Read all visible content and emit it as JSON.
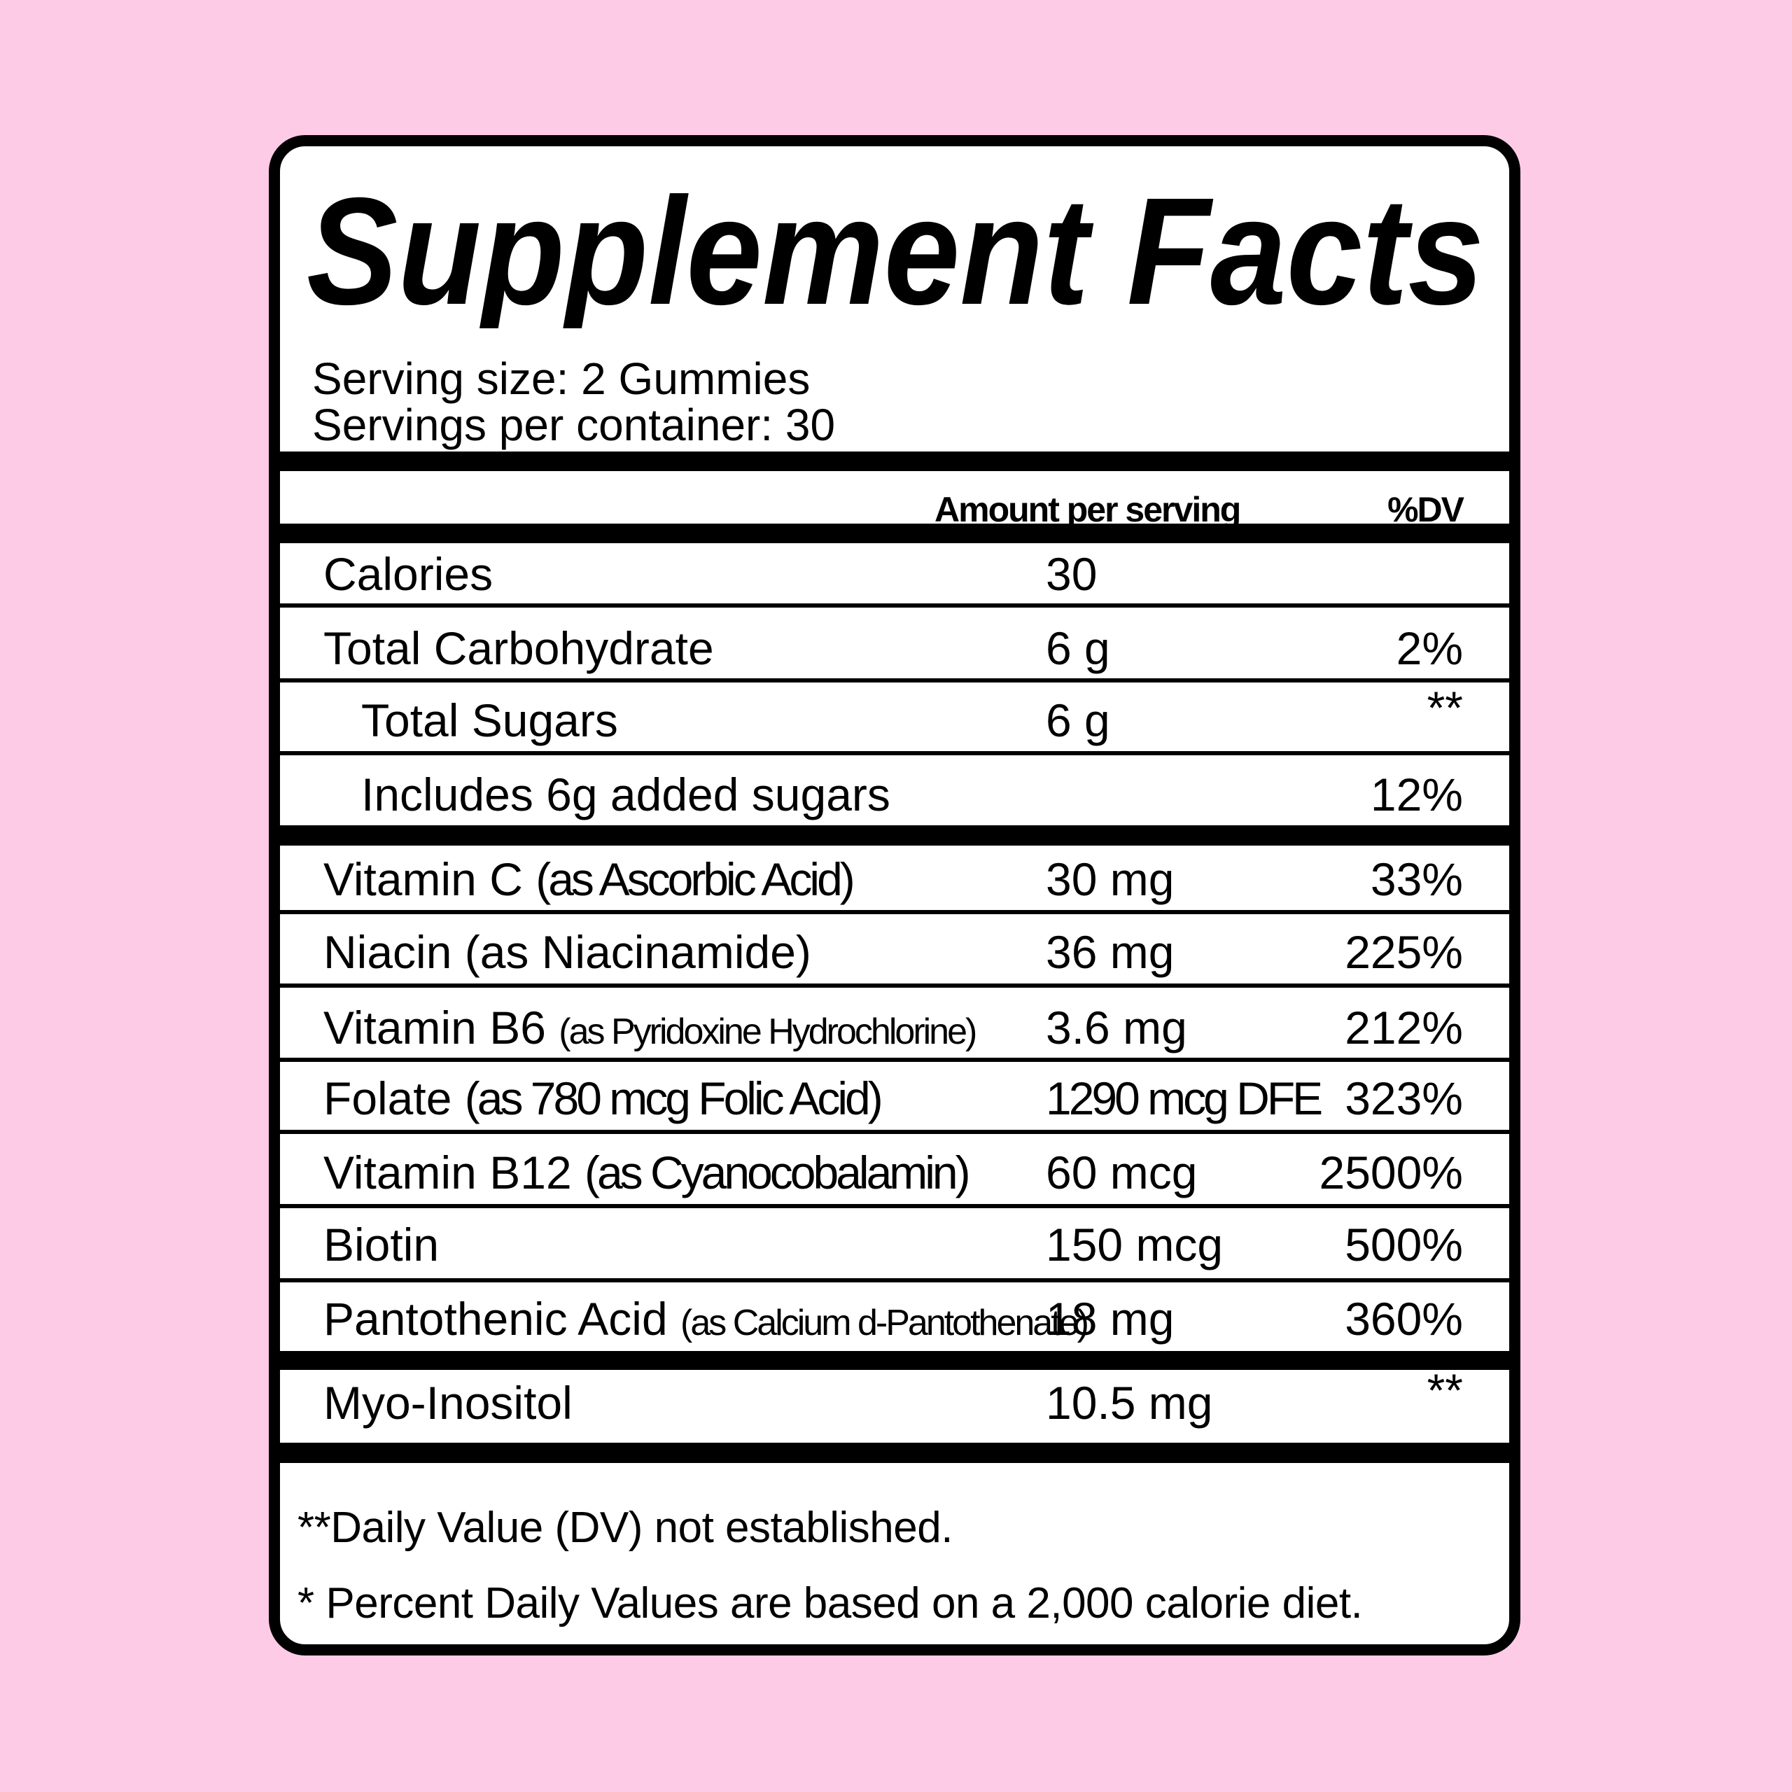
{
  "title": "Supplement Facts",
  "serving_size": "Serving size: 2 Gummies",
  "servings_per_container": "Servings per container: 30",
  "header": {
    "amount": "Amount per serving",
    "dv": "%DV"
  },
  "rows": [
    {
      "name": "Calories",
      "qualifier": "",
      "amount": "30",
      "dv": "",
      "indent": false
    },
    {
      "name": "Total Carbohydrate",
      "qualifier": "",
      "amount": "6 g",
      "dv": "2%",
      "indent": false
    },
    {
      "name": "Total Sugars",
      "qualifier": "",
      "amount": "6 g",
      "dv": "**",
      "indent": true
    },
    {
      "name": "Includes 6g added sugars",
      "qualifier": "",
      "amount": "",
      "dv": "12%",
      "indent": true
    },
    {
      "name": "Vitamin C",
      "qualifier": "(as Ascorbic Acid)",
      "amount": "30 mg",
      "dv": "33%",
      "indent": false
    },
    {
      "name": "Niacin (as Niacinamide)",
      "qualifier": "",
      "amount": "36 mg",
      "dv": "225%",
      "indent": false
    },
    {
      "name": "Vitamin B6",
      "qualifier": "(as Pyridoxine Hydrochlorine)",
      "amount": "3.6 mg",
      "dv": "212%",
      "indent": false,
      "small": true
    },
    {
      "name": "Folate",
      "qualifier": "(as 780 mcg Folic Acid)",
      "amount": "1290 mcg DFE",
      "dv": "323%",
      "indent": false,
      "condensed_amount": true
    },
    {
      "name": "Vitamin B12",
      "qualifier": "(as Cyanocobalamin)",
      "amount": "60 mcg",
      "dv": "2500%",
      "indent": false
    },
    {
      "name": "Biotin",
      "qualifier": "",
      "amount": "150 mcg",
      "dv": "500%",
      "indent": false
    },
    {
      "name": "Pantothenic Acid",
      "qualifier": "(as Calcium d-Pantothenate)",
      "amount": "18 mg",
      "dv": "360%",
      "indent": false,
      "small": true
    },
    {
      "name": "Myo-Inositol",
      "qualifier": "",
      "amount": "10.5 mg",
      "dv": "**",
      "indent": false
    }
  ],
  "footnotes": [
    "**Daily Value (DV) not established.",
    "* Percent Daily Values are based on a 2,000 calorie diet."
  ],
  "colors": {
    "background": "#fecbe7",
    "label": "#ffffff",
    "ink": "#000000"
  }
}
